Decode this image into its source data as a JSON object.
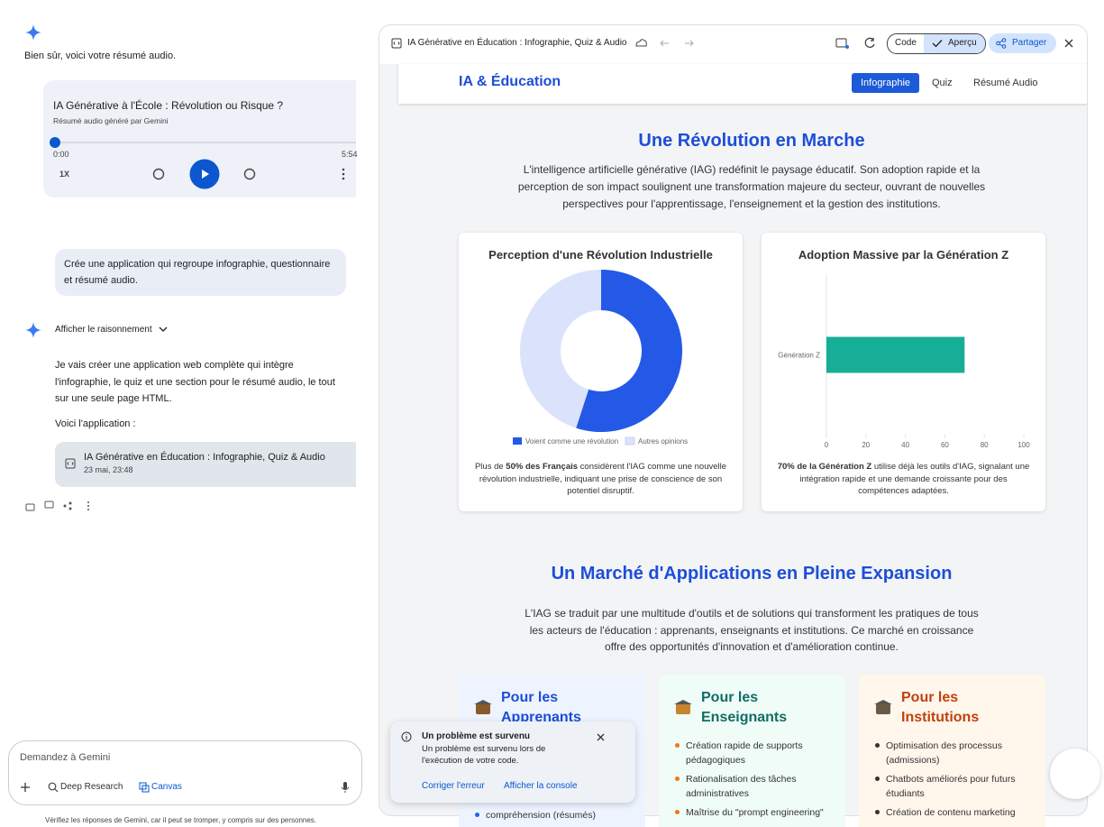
{
  "chat": {
    "intro_text": "Bien sûr, voici votre résumé audio.",
    "audio": {
      "title": "IA Générative à l'École : Révolution ou Risque ?",
      "subtitle": "Résumé audio généré par Gemini",
      "time_start": "0:00",
      "time_end": "5:54",
      "speed": "1X"
    },
    "user_message": "Crée une application qui regroupe infographie, questionnaire et résumé audio.",
    "reasoning_toggle": "Afficher le raisonnement",
    "response_paragraph": "Je vais créer une application web complète qui intègre l'infographie, le quiz et une section pour le résumé audio, le tout sur une seule page HTML.",
    "response_intro": "Voici l'application :",
    "app_card": {
      "title": "IA Générative en Éducation : Infographie, Quiz & Audio",
      "date": "23 mai, 23:48"
    },
    "input": {
      "placeholder": "Demandez à Gemini",
      "tools": [
        "Deep Research",
        "Canvas"
      ]
    },
    "disclaimer": "Vérifiez les réponses de Gemini, car il peut se tromper, y compris sur des personnes."
  },
  "canvas": {
    "title": "IA Générative en Éducation : Infographie, Quiz & Audio",
    "buttons": {
      "code": "Code",
      "preview": "Aperçu",
      "share": "Partager"
    },
    "app": {
      "brand": "IA & Éducation",
      "nav": [
        "Infographie",
        "Quiz",
        "Résumé Audio"
      ],
      "section1": {
        "title": "Une Révolution en Marche",
        "paragraph": "L'intelligence artificielle générative (IAG) redéfinit le paysage éducatif. Son adoption rapide et la perception de son impact soulignent une transformation majeure du secteur, ouvrant de nouvelles perspectives pour l'apprentissage, l'enseignement et la gestion des institutions."
      },
      "captions": [
        {
          "prefix": "Plus de ",
          "bold": "50% des Français",
          "suffix": " considèrent l'IAG comme une nouvelle révolution industrielle, indiquant une prise de conscience de son potentiel disruptif."
        },
        {
          "bold": "70% de la Génération Z",
          "suffix": " utilise déjà les outils d'IAG, signalant une intégration rapide et une demande croissante pour des compétences adaptées."
        }
      ],
      "section2": {
        "title": "Un Marché d'Applications en Pleine Expansion",
        "paragraph": "L'IAG se traduit par une multitude d'outils et de solutions qui transforment les pratiques de tous les acteurs de l'éducation : apprenants, enseignants et institutions. Ce marché en croissance offre des opportunités d'innovation et d'amélioration continue.",
        "cards": [
          {
            "title": "Pour les Apprenants",
            "items": [
              "compréhension (résumés)"
            ]
          },
          {
            "title": "Pour les Enseignants",
            "items": [
              "Création rapide de supports pédagogiques",
              "Rationalisation des tâches administratives",
              "Maîtrise du \"prompt engineering\""
            ]
          },
          {
            "title": "Pour les Institutions",
            "items": [
              "Optimisation des processus (admissions)",
              "Chatbots améliorés pour futurs étudiants",
              "Création de contenu marketing"
            ]
          }
        ]
      }
    },
    "toast": {
      "title": "Un problème est survenu",
      "message": "Un problème est survenu lors de l'exécution de votre code.",
      "actions": [
        "Corriger l'erreur",
        "Afficher la console"
      ]
    }
  },
  "chart_data": [
    {
      "type": "donut",
      "title": "Perception d'une Révolution Industrielle",
      "categories": [
        "Voient comme une révolution",
        "Autres opinions"
      ],
      "values": [
        55,
        45
      ],
      "colors": [
        "#2459e8",
        "#dbe2fb"
      ]
    },
    {
      "type": "hbar",
      "title": "Adoption Massive par la Génération Z",
      "categories": [
        "Génération Z"
      ],
      "values": [
        70
      ],
      "color": "#17ae98",
      "xlim": [
        0,
        100
      ],
      "xticks": [
        0,
        20,
        40,
        60,
        80,
        100
      ]
    }
  ]
}
